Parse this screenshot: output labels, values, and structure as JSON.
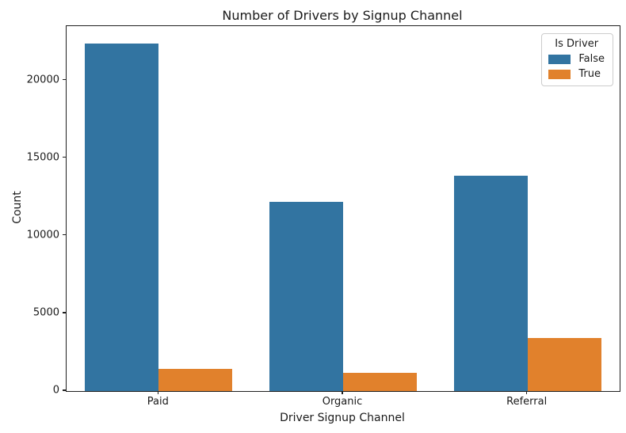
{
  "chart_data": {
    "type": "bar",
    "title": "Number of Drivers by Signup Channel",
    "xlabel": "Driver Signup Channel",
    "ylabel": "Count",
    "categories": [
      "Paid",
      "Organic",
      "Referral"
    ],
    "series": [
      {
        "name": "False",
        "color": "#3274a1",
        "values": [
          22400,
          12200,
          13850
        ]
      },
      {
        "name": "True",
        "color": "#e1812c",
        "values": [
          1450,
          1150,
          3400
        ]
      }
    ],
    "legend": {
      "title": "Is Driver",
      "position": "upper right",
      "entries": [
        "False",
        "True"
      ]
    },
    "yticks": [
      0,
      5000,
      10000,
      15000,
      20000
    ],
    "ylim": [
      0,
      23500
    ],
    "grid": false,
    "background": "#ffffff",
    "spine_color": "#1f1f1f"
  }
}
